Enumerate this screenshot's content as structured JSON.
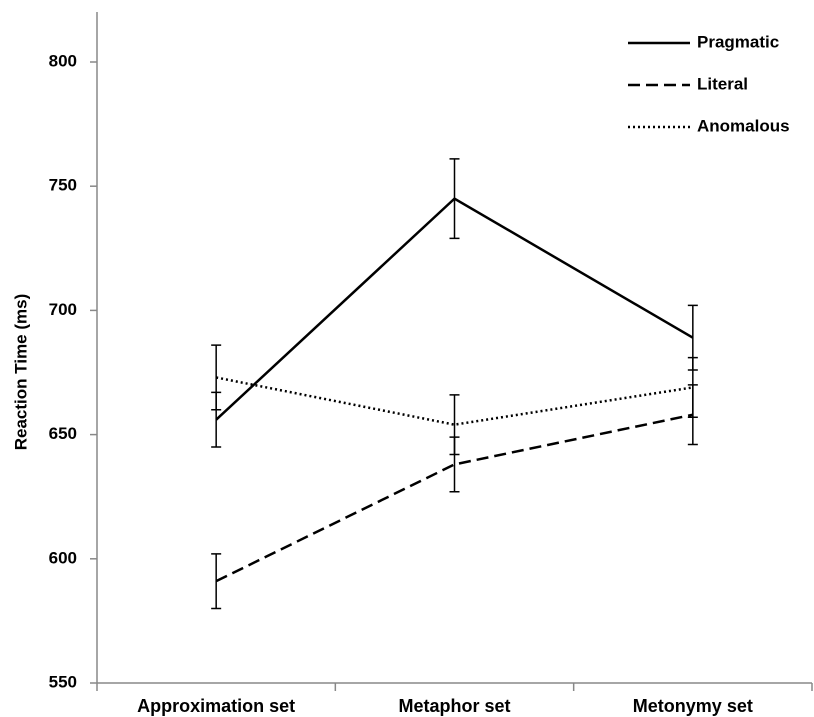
{
  "chart_data": {
    "type": "line",
    "y_label": "Reaction Time (ms)",
    "categories": [
      "Approximation set",
      "Metaphor set",
      "Metonymy set"
    ],
    "series": [
      {
        "name": "Pragmatic",
        "color": "#000000",
        "line_style": "solid",
        "values": [
          656,
          745,
          689
        ],
        "errors": [
          11,
          16,
          13
        ]
      },
      {
        "name": "Literal",
        "color": "#000000",
        "line_style": "dashed",
        "values": [
          591,
          638,
          658
        ],
        "errors": [
          11,
          11,
          12
        ]
      },
      {
        "name": "Anomalous",
        "color": "#000000",
        "line_style": "dotted",
        "values": [
          673,
          654,
          669
        ],
        "errors": [
          13,
          12,
          12
        ]
      }
    ],
    "ylim": [
      550,
      800
    ],
    "yticks": [
      550,
      600,
      650,
      700,
      750,
      800
    ],
    "grid": false,
    "legend": "top-right"
  }
}
